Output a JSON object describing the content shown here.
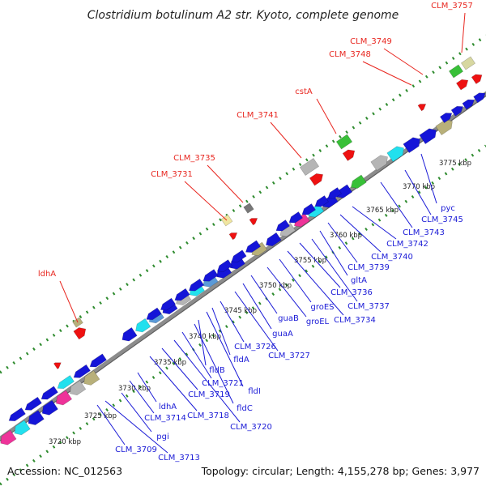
{
  "title": "Clostridium botulinum A2 str. Kyoto, complete genome",
  "accession": "Accession: NC_012563",
  "summary": "Topology: circular; Length: 4,155,278 bp; Genes: 3,977",
  "colors": {
    "top_label": "#e8261f",
    "bottom_label": "#1a1ad6",
    "dots": "#2e8b2e",
    "backbone": "#8c8c8c"
  },
  "kbp_ticks": [
    "3720 kbp",
    "3725 kbp",
    "3730 kbp",
    "3735 kbp",
    "3740 kbp",
    "3745 kbp",
    "3750 kbp",
    "3755 kbp",
    "3760 kbp",
    "3765 kbp",
    "3770 kbp",
    "3775 kbp"
  ],
  "top_labels": [
    "ldhA",
    "CLM_3731",
    "CLM_3735",
    "CLM_3741",
    "cstA",
    "CLM_3748",
    "CLM_3749",
    "CLM_3757"
  ],
  "bottom_labels": [
    "CLM_3709",
    "CLM_3713",
    "pgi",
    "CLM_3714",
    "ldhA",
    "CLM_3718",
    "CLM_3719",
    "CLM_3720",
    "CLM_3721",
    "fldC",
    "fldB",
    "fldI",
    "fldA",
    "CLM_3726",
    "CLM_3727",
    "guaA",
    "guaB",
    "groEL",
    "groES",
    "CLM_3734",
    "CLM_3736",
    "CLM_3737",
    "gltA",
    "CLM_3739",
    "CLM_3740",
    "CLM_3742",
    "CLM_3743",
    "CLM_3745",
    "pyc"
  ]
}
